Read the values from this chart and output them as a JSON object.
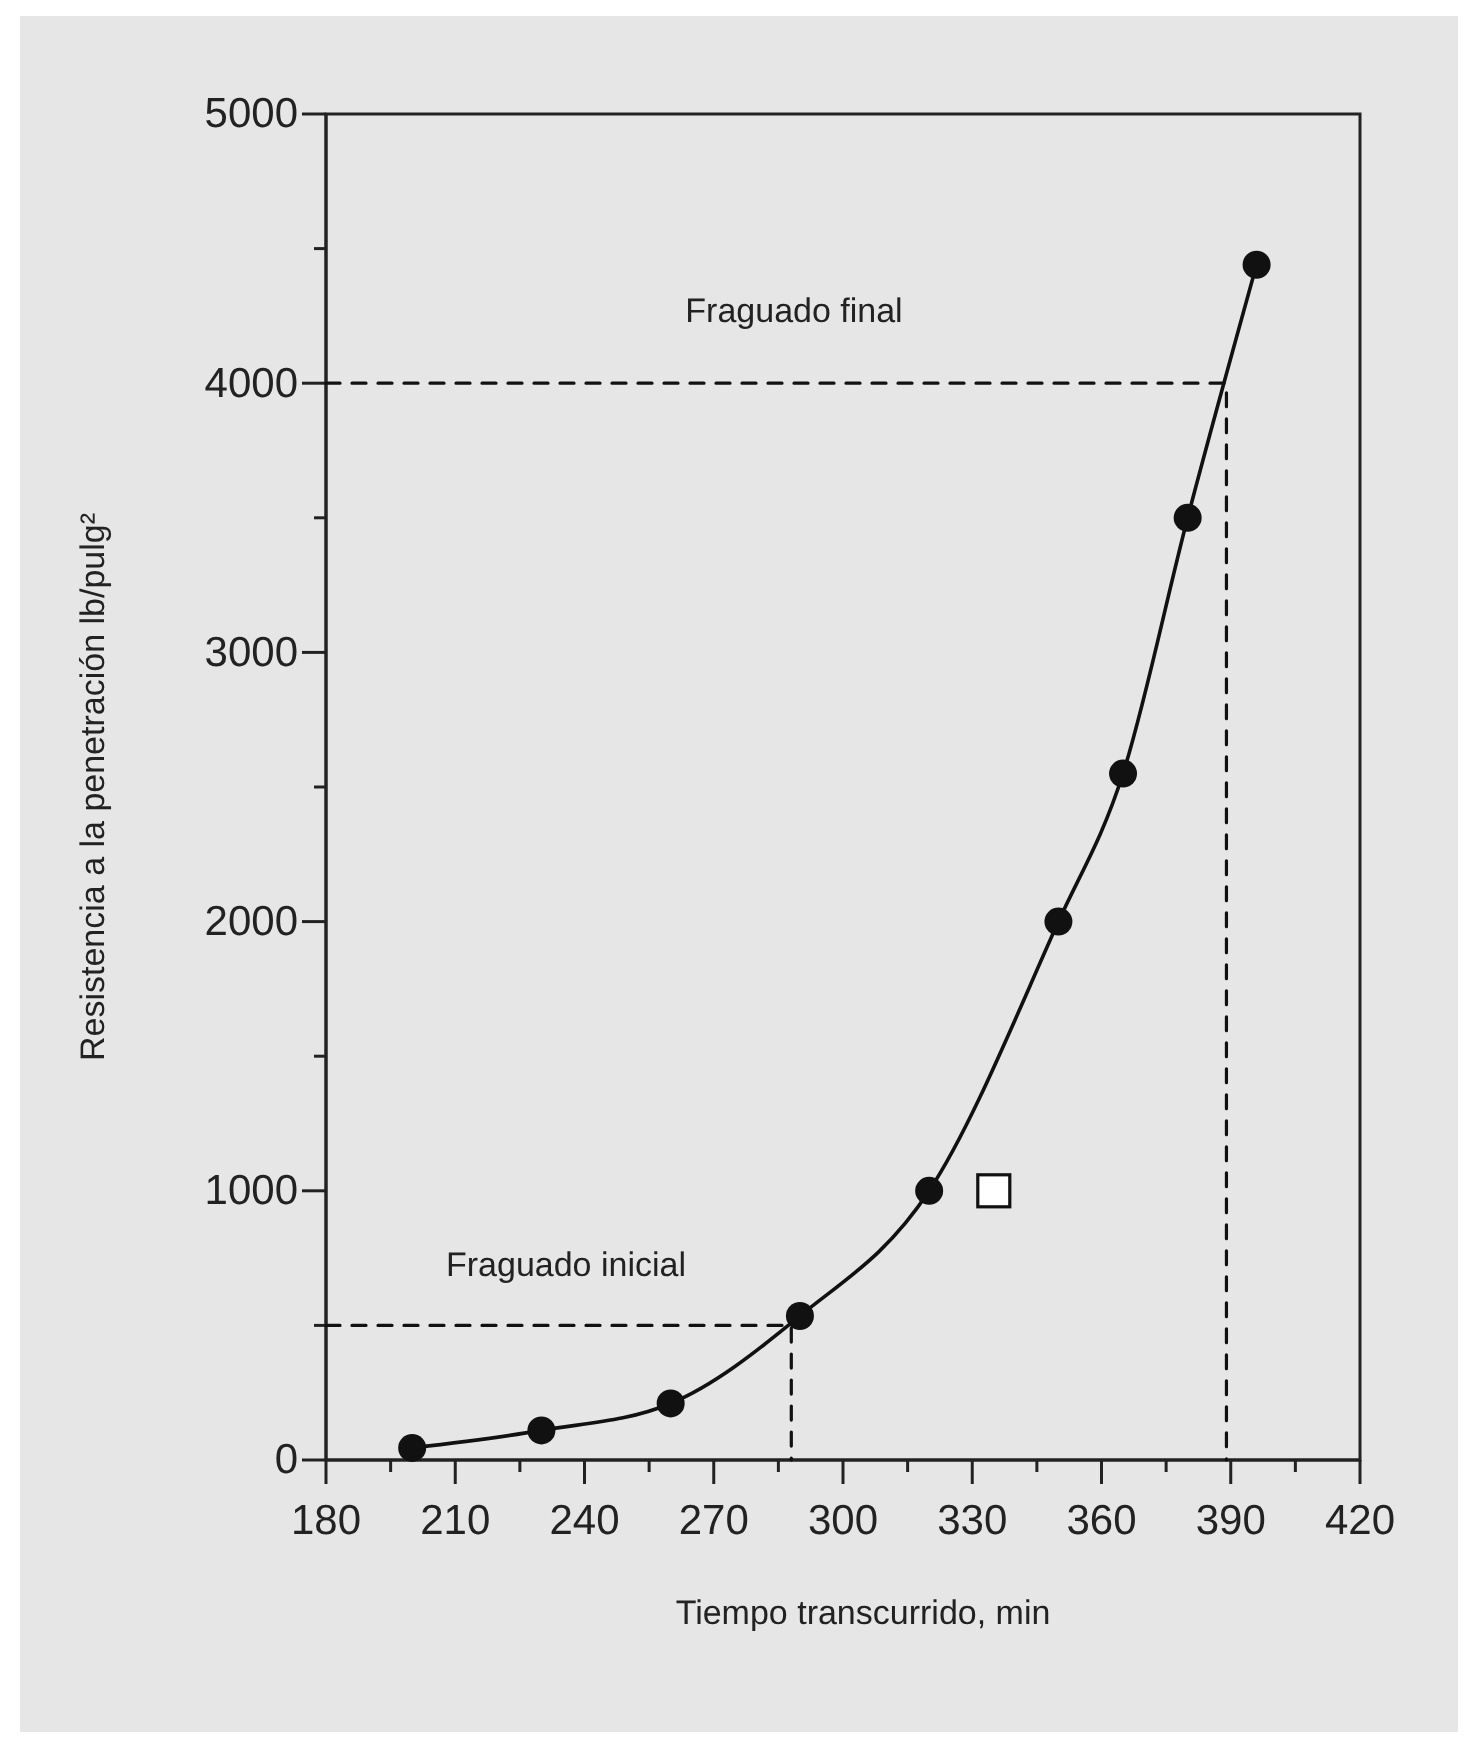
{
  "chart_data": {
    "type": "scatter",
    "xlabel": "Tiempo transcurrido, min",
    "ylabel": "Resistencia a la penetración lb/pulg²",
    "xlim": [
      180,
      420
    ],
    "xticks": [
      180,
      {
        "value": 195,
        "label": null
      },
      210,
      {
        "value": 225,
        "label": null
      },
      240,
      {
        "value": 255,
        "label": null
      },
      270,
      {
        "value": 285,
        "label": null
      },
      300,
      {
        "value": 315,
        "label": null
      },
      330,
      {
        "value": 345,
        "label": null
      },
      360,
      {
        "value": 375,
        "label": null
      },
      390,
      {
        "value": 405,
        "label": null
      },
      420
    ],
    "ylim": [
      0,
      5000
    ],
    "yticks": [
      0,
      {
        "value": 500,
        "label": null
      },
      1000,
      {
        "value": 1500,
        "label": null
      },
      2000,
      {
        "value": 2500,
        "label": null
      },
      3000,
      {
        "value": 3500,
        "label": null
      },
      4000,
      {
        "value": 4500,
        "label": null
      },
      5000
    ],
    "grid": false,
    "series": [
      {
        "type": "line",
        "color": "#111111",
        "marker": "none",
        "line_style": "dashed",
        "x": [
          180,
          288,
          288
        ],
        "values": [
          500,
          500,
          0
        ]
      },
      {
        "type": "line",
        "color": "#111111",
        "marker": "none",
        "line_style": "dashed",
        "x": [
          180,
          389,
          389
        ],
        "values": [
          4000,
          4000,
          0
        ]
      },
      {
        "type": "line",
        "color": "#111111",
        "marker": "none",
        "line_style": "solid",
        "x": [
          200,
          230,
          260,
          290,
          320,
          350,
          365,
          380,
          396
        ],
        "values": [
          45,
          110,
          210,
          535,
          1000,
          2000,
          2550,
          3500,
          4440
        ]
      },
      {
        "color": "#111111",
        "marker": "circle",
        "x": [
          200,
          230,
          260,
          290,
          320,
          350,
          365,
          380,
          396
        ],
        "values": [
          45,
          110,
          210,
          535,
          1000,
          2000,
          2550,
          3500,
          4440
        ]
      },
      {
        "color": "#111111",
        "marker": "square",
        "x": [
          335
        ],
        "values": [
          1000
        ]
      }
    ],
    "annotations": [
      "Fraguado inicial",
      "Fraguado final"
    ]
  }
}
